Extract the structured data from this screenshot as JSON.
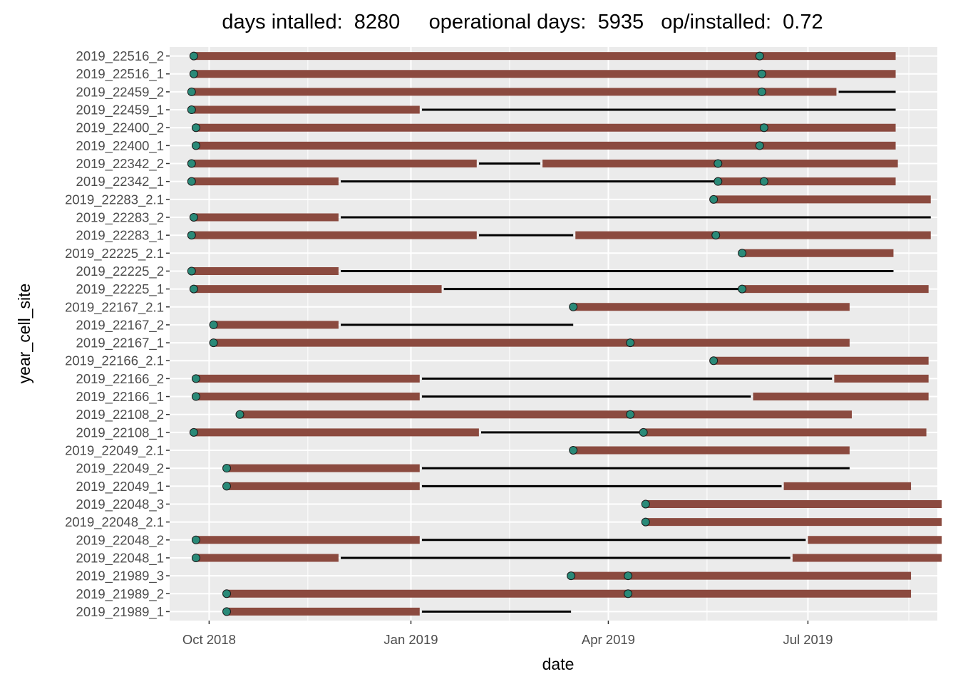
{
  "chart_data": {
    "type": "timeline",
    "title": "days intalled:  8280     operational days:  5935   op/installed:  0.72",
    "xlabel": "date",
    "ylabel": "year_cell_site",
    "x_tick_labels": [
      "Oct 2018",
      "Jan 2019",
      "Apr 2019",
      "Jul 2019"
    ],
    "x_ticks": [
      "2018-10-01",
      "2019-01-01",
      "2019-04-01",
      "2019-07-01"
    ],
    "x_minor_ticks": [
      "2018-11-15",
      "2019-02-15",
      "2019-05-16",
      "2019-08-16"
    ],
    "xlim": [
      "2018-09-13",
      "2019-08-29"
    ],
    "grid": true,
    "colors": {
      "panel": "#ebebeb",
      "gridline": "#ffffff",
      "operational_bar": "#8b4a3f",
      "non_operational_line": "#000000",
      "event_marker_fill": "#2a8a78",
      "event_marker_stroke": "#1a1a1a"
    },
    "series": [
      {
        "name": "operational",
        "mark": "thick bar"
      },
      {
        "name": "not operational",
        "mark": "thin line"
      },
      {
        "name": "visit",
        "mark": "point"
      }
    ],
    "rows": [
      {
        "label": "2019_22516_2",
        "operational": [
          [
            "2018-09-24",
            "2019-08-10"
          ]
        ],
        "down": [],
        "points": [
          "2018-09-24",
          "2019-06-09"
        ]
      },
      {
        "label": "2019_22516_1",
        "operational": [
          [
            "2018-09-24",
            "2019-08-10"
          ]
        ],
        "down": [],
        "points": [
          "2018-09-24",
          "2019-06-10"
        ]
      },
      {
        "label": "2019_22459_2",
        "operational": [
          [
            "2018-09-23",
            "2019-07-14"
          ]
        ],
        "down": [
          [
            "2019-07-15",
            "2019-08-10"
          ]
        ],
        "points": [
          "2018-09-23",
          "2019-06-10"
        ]
      },
      {
        "label": "2019_22459_1",
        "operational": [
          [
            "2018-09-23",
            "2019-01-05"
          ]
        ],
        "down": [
          [
            "2019-01-06",
            "2019-08-10"
          ]
        ],
        "points": [
          "2018-09-23"
        ]
      },
      {
        "label": "2019_22400_2",
        "operational": [
          [
            "2018-09-25",
            "2019-08-10"
          ]
        ],
        "down": [],
        "points": [
          "2018-09-25",
          "2019-06-11"
        ]
      },
      {
        "label": "2019_22400_1",
        "operational": [
          [
            "2018-09-25",
            "2019-08-10"
          ]
        ],
        "down": [],
        "points": [
          "2018-09-25",
          "2019-06-09"
        ]
      },
      {
        "label": "2019_22342_2",
        "operational": [
          [
            "2018-09-23",
            "2019-01-31"
          ],
          [
            "2019-03-02",
            "2019-08-11"
          ]
        ],
        "down": [
          [
            "2019-02-01",
            "2019-03-01"
          ]
        ],
        "points": [
          "2018-09-23",
          "2019-05-21"
        ]
      },
      {
        "label": "2019_22342_1",
        "operational": [
          [
            "2018-09-23",
            "2018-11-29"
          ],
          [
            "2019-05-21",
            "2019-08-10"
          ]
        ],
        "down": [
          [
            "2018-11-30",
            "2019-05-20"
          ]
        ],
        "points": [
          "2018-09-23",
          "2019-05-21",
          "2019-06-11"
        ]
      },
      {
        "label": "2019_22283_2.1",
        "operational": [
          [
            "2019-05-19",
            "2019-08-26"
          ]
        ],
        "down": [],
        "points": [
          "2019-05-19"
        ]
      },
      {
        "label": "2019_22283_2",
        "operational": [
          [
            "2018-09-24",
            "2018-11-29"
          ]
        ],
        "down": [
          [
            "2018-11-30",
            "2019-08-26"
          ]
        ],
        "points": [
          "2018-09-24"
        ]
      },
      {
        "label": "2019_22283_1",
        "operational": [
          [
            "2018-09-23",
            "2019-01-31"
          ],
          [
            "2019-03-17",
            "2019-08-26"
          ]
        ],
        "down": [
          [
            "2019-02-01",
            "2019-03-16"
          ]
        ],
        "points": [
          "2018-09-23",
          "2019-05-20"
        ]
      },
      {
        "label": "2019_22225_2.1",
        "operational": [
          [
            "2019-06-01",
            "2019-08-09"
          ]
        ],
        "down": [],
        "points": [
          "2019-06-01"
        ]
      },
      {
        "label": "2019_22225_2",
        "operational": [
          [
            "2018-09-23",
            "2018-11-29"
          ]
        ],
        "down": [
          [
            "2018-11-30",
            "2019-08-09"
          ]
        ],
        "points": [
          "2018-09-23"
        ]
      },
      {
        "label": "2019_22225_1",
        "operational": [
          [
            "2018-09-24",
            "2019-01-15"
          ],
          [
            "2019-06-01",
            "2019-08-25"
          ]
        ],
        "down": [
          [
            "2019-01-16",
            "2019-05-31"
          ]
        ],
        "points": [
          "2018-09-24",
          "2019-06-01"
        ]
      },
      {
        "label": "2019_22167_2.1",
        "operational": [
          [
            "2019-03-16",
            "2019-07-20"
          ]
        ],
        "down": [],
        "points": [
          "2019-03-16"
        ]
      },
      {
        "label": "2019_22167_2",
        "operational": [
          [
            "2018-10-03",
            "2018-11-29"
          ]
        ],
        "down": [
          [
            "2018-11-30",
            "2019-03-16"
          ]
        ],
        "points": [
          "2018-10-03"
        ]
      },
      {
        "label": "2019_22167_1",
        "operational": [
          [
            "2018-10-03",
            "2019-07-20"
          ]
        ],
        "down": [],
        "points": [
          "2018-10-03",
          "2019-04-11"
        ]
      },
      {
        "label": "2019_22166_2.1",
        "operational": [
          [
            "2019-05-19",
            "2019-08-25"
          ]
        ],
        "down": [],
        "points": [
          "2019-05-19"
        ]
      },
      {
        "label": "2019_22166_2",
        "operational": [
          [
            "2018-09-25",
            "2019-01-05"
          ],
          [
            "2019-07-13",
            "2019-08-25"
          ]
        ],
        "down": [
          [
            "2019-01-06",
            "2019-07-12"
          ]
        ],
        "points": [
          "2018-09-25"
        ]
      },
      {
        "label": "2019_22166_1",
        "operational": [
          [
            "2018-09-25",
            "2019-01-05"
          ],
          [
            "2019-06-06",
            "2019-08-25"
          ]
        ],
        "down": [
          [
            "2019-01-06",
            "2019-06-05"
          ]
        ],
        "points": [
          "2018-09-25"
        ]
      },
      {
        "label": "2019_22108_2",
        "operational": [
          [
            "2018-10-15",
            "2019-07-21"
          ]
        ],
        "down": [],
        "points": [
          "2018-10-15",
          "2019-04-11"
        ]
      },
      {
        "label": "2019_22108_1",
        "operational": [
          [
            "2018-09-24",
            "2019-02-01"
          ],
          [
            "2019-04-17",
            "2019-08-24"
          ]
        ],
        "down": [
          [
            "2019-02-02",
            "2019-04-16"
          ]
        ],
        "points": [
          "2018-09-24",
          "2019-04-17"
        ]
      },
      {
        "label": "2019_22049_2.1",
        "operational": [
          [
            "2019-03-16",
            "2019-07-20"
          ]
        ],
        "down": [],
        "points": [
          "2019-03-16"
        ]
      },
      {
        "label": "2019_22049_2",
        "operational": [
          [
            "2018-10-09",
            "2019-01-05"
          ]
        ],
        "down": [
          [
            "2019-01-06",
            "2019-07-20"
          ]
        ],
        "points": [
          "2018-10-09"
        ]
      },
      {
        "label": "2019_22049_1",
        "operational": [
          [
            "2018-10-09",
            "2019-01-05"
          ],
          [
            "2019-06-20",
            "2019-08-17"
          ]
        ],
        "down": [
          [
            "2019-01-06",
            "2019-06-19"
          ]
        ],
        "points": [
          "2018-10-09"
        ]
      },
      {
        "label": "2019_22048_3",
        "operational": [
          [
            "2019-04-18",
            "2019-08-31"
          ]
        ],
        "down": [],
        "points": [
          "2019-04-18"
        ]
      },
      {
        "label": "2019_22048_2.1",
        "operational": [
          [
            "2019-04-18",
            "2019-08-31"
          ]
        ],
        "down": [],
        "points": [
          "2019-04-18"
        ]
      },
      {
        "label": "2019_22048_2",
        "operational": [
          [
            "2018-09-25",
            "2019-01-05"
          ],
          [
            "2019-07-01",
            "2019-08-31"
          ]
        ],
        "down": [
          [
            "2019-01-06",
            "2019-06-30"
          ]
        ],
        "points": [
          "2018-09-25"
        ]
      },
      {
        "label": "2019_22048_1",
        "operational": [
          [
            "2018-09-25",
            "2018-11-29"
          ],
          [
            "2019-06-24",
            "2019-08-31"
          ]
        ],
        "down": [
          [
            "2018-11-30",
            "2019-06-23"
          ]
        ],
        "points": [
          "2018-09-25"
        ]
      },
      {
        "label": "2019_21989_3",
        "operational": [
          [
            "2019-03-15",
            "2019-08-17"
          ]
        ],
        "down": [],
        "points": [
          "2019-03-15",
          "2019-04-10"
        ]
      },
      {
        "label": "2019_21989_2",
        "operational": [
          [
            "2018-10-09",
            "2019-08-17"
          ]
        ],
        "down": [],
        "points": [
          "2018-10-09",
          "2019-04-10"
        ]
      },
      {
        "label": "2019_21989_1",
        "operational": [
          [
            "2018-10-09",
            "2019-01-05"
          ]
        ],
        "down": [
          [
            "2019-01-06",
            "2019-03-15"
          ]
        ],
        "points": [
          "2018-10-09"
        ]
      }
    ]
  }
}
